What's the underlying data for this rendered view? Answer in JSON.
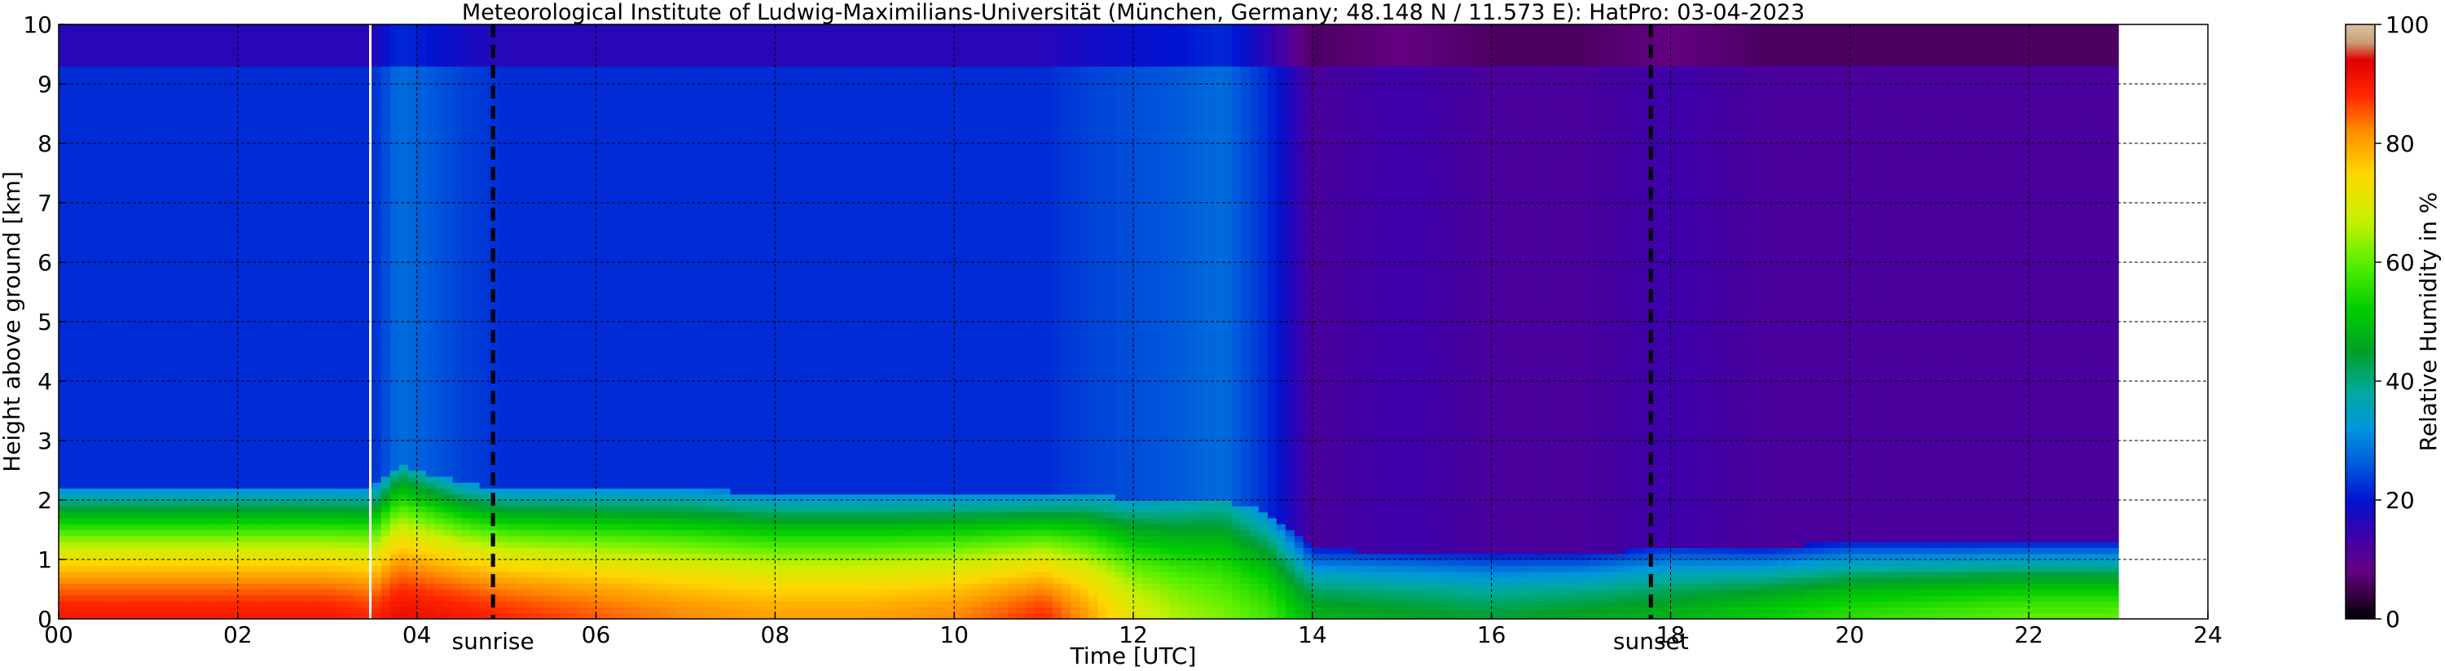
{
  "chart_data": {
    "type": "heatmap",
    "title": "Meteorological Institute of Ludwig-Maximilians-Universität (München, Germany; 48.148 N / 11.573 E):    HatPro: 03-04-2023",
    "xlabel": "Time [UTC]",
    "ylabel": "Height above ground [km]",
    "xlim": [
      0,
      24
    ],
    "ylim": [
      0,
      10
    ],
    "x_ticks": [
      "00",
      "02",
      "04",
      "06",
      "08",
      "10",
      "12",
      "14",
      "16",
      "18",
      "20",
      "22",
      "24"
    ],
    "y_ticks": [
      "0",
      "1",
      "2",
      "3",
      "4",
      "5",
      "6",
      "7",
      "8",
      "9",
      "10"
    ],
    "data_end_hour": 23.0,
    "grid": true,
    "colorbar": {
      "label": "Relative Humidity in %",
      "range": [
        0,
        100
      ],
      "ticks": [
        "0",
        "20",
        "40",
        "60",
        "80",
        "100"
      ]
    },
    "markers": [
      {
        "label": "sunrise",
        "hour": 4.85
      },
      {
        "label": "sunset",
        "hour": 17.78
      }
    ],
    "gap_hour": 3.48,
    "surface_rh_profile": {
      "hours": [
        0,
        1,
        2,
        3,
        3.5,
        3.8,
        4.5,
        5,
        6,
        7,
        8,
        9,
        10,
        11,
        11.5,
        12,
        12.5,
        13,
        13.5,
        14,
        15,
        16,
        17,
        18,
        19,
        20,
        21,
        22,
        23
      ],
      "rh_near_ground": [
        90,
        90,
        90,
        90,
        88,
        92,
        90,
        88,
        85,
        82,
        80,
        80,
        82,
        88,
        80,
        70,
        65,
        62,
        58,
        48,
        46,
        44,
        46,
        48,
        52,
        56,
        58,
        60,
        60
      ],
      "boundary_layer_top_km": [
        2.2,
        2.2,
        2.2,
        2.2,
        2.2,
        2.6,
        2.3,
        2.2,
        2.2,
        2.2,
        2.1,
        2.1,
        2.1,
        2.1,
        2.1,
        2.0,
        2.0,
        2.0,
        1.8,
        1.2,
        1.1,
        1.1,
        1.1,
        1.2,
        1.2,
        1.3,
        1.3,
        1.3,
        1.3
      ],
      "free_troposphere_rh": [
        22,
        22,
        22,
        22,
        22,
        28,
        24,
        22,
        22,
        22,
        22,
        22,
        22,
        22,
        24,
        25,
        26,
        28,
        22,
        12,
        14,
        12,
        12,
        14,
        12,
        12,
        12,
        12,
        12
      ]
    }
  }
}
